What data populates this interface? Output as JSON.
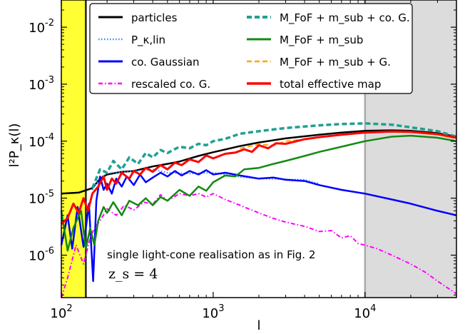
{
  "chart_data": {
    "type": "line",
    "xlabel": "l",
    "ylabel": "l²P_κ(l)",
    "xscale": "log",
    "yscale": "log",
    "xlim": [
      100,
      40000
    ],
    "ylim": [
      1.8e-07,
      0.03
    ],
    "xticks": [
      {
        "value": 100,
        "mant": "10",
        "exp": "2"
      },
      {
        "value": 1000,
        "mant": "10",
        "exp": "3"
      },
      {
        "value": 10000,
        "mant": "10",
        "exp": "4"
      }
    ],
    "yticks": [
      {
        "value": 1e-06,
        "mant": "10",
        "exp": "-6"
      },
      {
        "value": 1e-05,
        "mant": "10",
        "exp": "-5"
      },
      {
        "value": 0.0001,
        "mant": "10",
        "exp": "-4"
      },
      {
        "value": 0.001,
        "mant": "10",
        "exp": "-3"
      },
      {
        "value": 0.01,
        "mant": "10",
        "exp": "-2"
      }
    ],
    "shaded_regions": [
      {
        "x": [
          100,
          145
        ],
        "color": "#ffff33"
      },
      {
        "x": [
          10000,
          40000
        ],
        "color": "#dcdcdc"
      }
    ],
    "legend_position": "top",
    "annotation": {
      "line1": "single light-cone realisation as in Fig. 2",
      "line2": "z_s = 4"
    },
    "series": [
      {
        "name": "particles",
        "color": "#000000",
        "dash": "solid",
        "width": 2.5,
        "points": [
          [
            100,
            1.2e-05
          ],
          [
            130,
            1.25e-05
          ],
          [
            160,
            1.5e-05
          ],
          [
            180,
            2.2e-05
          ],
          [
            200,
            2.6e-05
          ],
          [
            250,
            2.9e-05
          ],
          [
            300,
            3e-05
          ],
          [
            400,
            3.6e-05
          ],
          [
            500,
            4e-05
          ],
          [
            600,
            4.4e-05
          ],
          [
            800,
            5.5e-05
          ],
          [
            1000,
            6.4e-05
          ],
          [
            1500,
            8.2e-05
          ],
          [
            2000,
            9.5e-05
          ],
          [
            3000,
            0.000112
          ],
          [
            5000,
            0.00013
          ],
          [
            7000,
            0.000142
          ],
          [
            10000,
            0.000152
          ],
          [
            15000,
            0.000155
          ],
          [
            20000,
            0.000152
          ],
          [
            30000,
            0.000138
          ],
          [
            40000,
            0.00012
          ]
        ]
      },
      {
        "name": "P_κ,lin",
        "color": "#3388ff",
        "dash": "dotted",
        "width": 2,
        "points": [
          [
            160,
            1.4e-05
          ],
          [
            180,
            2.3e-05
          ],
          [
            200,
            2.7e-05
          ],
          [
            250,
            2.9e-05
          ],
          [
            300,
            3e-05
          ],
          [
            400,
            3.2e-05
          ],
          [
            500,
            2.8e-05
          ],
          [
            700,
            2.7e-05
          ],
          [
            1000,
            2.8e-05
          ],
          [
            1500,
            2.35e-05
          ],
          [
            2000,
            2.2e-05
          ],
          [
            3000,
            2.15e-05
          ],
          [
            4000,
            2.1e-05
          ],
          [
            5000,
            1.8e-05
          ]
        ]
      },
      {
        "name": "co. Gaussian",
        "color": "#0000ff",
        "dash": "solid",
        "width": 2.5,
        "points": [
          [
            100,
            1.5e-06
          ],
          [
            110,
            5e-06
          ],
          [
            118,
            1.3e-06
          ],
          [
            128,
            7e-06
          ],
          [
            140,
            1.4e-06
          ],
          [
            152,
            8e-06
          ],
          [
            162,
            3.5e-07
          ],
          [
            170,
            9e-06
          ],
          [
            180,
            2.4e-05
          ],
          [
            190,
            1.4e-05
          ],
          [
            200,
            1.8e-05
          ],
          [
            215,
            1.2e-05
          ],
          [
            230,
            2.2e-05
          ],
          [
            250,
            1.6e-05
          ],
          [
            270,
            2.4e-05
          ],
          [
            300,
            1.7e-05
          ],
          [
            330,
            2.6e-05
          ],
          [
            360,
            1.9e-05
          ],
          [
            400,
            2.3e-05
          ],
          [
            450,
            2.8e-05
          ],
          [
            500,
            2.4e-05
          ],
          [
            560,
            3e-05
          ],
          [
            620,
            2.5e-05
          ],
          [
            700,
            3e-05
          ],
          [
            800,
            2.6e-05
          ],
          [
            900,
            3.1e-05
          ],
          [
            1000,
            2.6e-05
          ],
          [
            1200,
            2.8e-05
          ],
          [
            1500,
            2.5e-05
          ],
          [
            2000,
            2.2e-05
          ],
          [
            2500,
            2.3e-05
          ],
          [
            3000,
            2.1e-05
          ],
          [
            4000,
            2e-05
          ],
          [
            5000,
            1.7e-05
          ],
          [
            7000,
            1.4e-05
          ],
          [
            10000,
            1.2e-05
          ],
          [
            15000,
            9.5e-06
          ],
          [
            20000,
            8e-06
          ],
          [
            30000,
            6e-06
          ],
          [
            40000,
            5e-06
          ]
        ]
      },
      {
        "name": "rescaled co. G.",
        "color": "#ff00ff",
        "dash": "dashdot",
        "width": 2,
        "points": [
          [
            100,
            1.8e-07
          ],
          [
            110,
            4e-07
          ],
          [
            125,
            1.5e-06
          ],
          [
            140,
            7e-07
          ],
          [
            155,
            2e-06
          ],
          [
            165,
            3e-06
          ],
          [
            180,
            4e-06
          ],
          [
            200,
            6.5e-06
          ],
          [
            230,
            5e-06
          ],
          [
            260,
            7.5e-06
          ],
          [
            300,
            6.2e-06
          ],
          [
            350,
            8.5e-06
          ],
          [
            400,
            7.8e-06
          ],
          [
            450,
            1.15e-05
          ],
          [
            500,
            9e-06
          ],
          [
            600,
            1.2e-05
          ],
          [
            700,
            1.1e-05
          ],
          [
            800,
            1.2e-05
          ],
          [
            900,
            1.05e-05
          ],
          [
            1000,
            1.2e-05
          ],
          [
            1200,
            9.5e-06
          ],
          [
            1500,
            7.5e-06
          ],
          [
            2000,
            5.5e-06
          ],
          [
            2500,
            4.4e-06
          ],
          [
            3000,
            3.8e-06
          ],
          [
            4000,
            3.2e-06
          ],
          [
            5000,
            2.6e-06
          ],
          [
            6000,
            2.7e-06
          ],
          [
            7000,
            2e-06
          ],
          [
            8000,
            2.2e-06
          ],
          [
            9000,
            1.6e-06
          ],
          [
            10000,
            1.5e-06
          ],
          [
            12000,
            1.3e-06
          ],
          [
            15000,
            1e-06
          ],
          [
            20000,
            7e-07
          ],
          [
            25000,
            5e-07
          ],
          [
            30000,
            3.5e-07
          ],
          [
            40000,
            2.1e-07
          ]
        ]
      },
      {
        "name": "M_FoF + m_sub + co. G.",
        "color": "#20a090",
        "dash": "dashed",
        "width": 3.5,
        "points": [
          [
            160,
            1.5e-05
          ],
          [
            180,
            3.2e-05
          ],
          [
            200,
            2.8e-05
          ],
          [
            220,
            4.5e-05
          ],
          [
            250,
            3.2e-05
          ],
          [
            280,
            5.2e-05
          ],
          [
            320,
            4e-05
          ],
          [
            360,
            6.2e-05
          ],
          [
            400,
            5.2e-05
          ],
          [
            450,
            7e-05
          ],
          [
            500,
            6.2e-05
          ],
          [
            600,
            8e-05
          ],
          [
            700,
            7.5e-05
          ],
          [
            800,
            9e-05
          ],
          [
            900,
            8.5e-05
          ],
          [
            1000,
            0.0001
          ],
          [
            1200,
            0.00011
          ],
          [
            1500,
            0.000135
          ],
          [
            2000,
            0.00015
          ],
          [
            3000,
            0.00017
          ],
          [
            5000,
            0.00019
          ],
          [
            7000,
            0.0002
          ],
          [
            10000,
            0.000205
          ],
          [
            15000,
            0.000195
          ],
          [
            20000,
            0.000175
          ],
          [
            30000,
            0.00015
          ],
          [
            40000,
            0.00012
          ]
        ]
      },
      {
        "name": "M_FoF + m_sub",
        "color": "#138a13",
        "dash": "solid",
        "width": 2.5,
        "points": [
          [
            100,
            6e-06
          ],
          [
            110,
            1.2e-06
          ],
          [
            120,
            3e-06
          ],
          [
            135,
            6e-06
          ],
          [
            145,
            1.3e-06
          ],
          [
            155,
            3e-06
          ],
          [
            165,
            1.5e-06
          ],
          [
            175,
            4e-06
          ],
          [
            190,
            7e-06
          ],
          [
            200,
            5.5e-06
          ],
          [
            220,
            8.5e-06
          ],
          [
            250,
            5e-06
          ],
          [
            280,
            9e-06
          ],
          [
            320,
            7.5e-06
          ],
          [
            360,
            1e-05
          ],
          [
            400,
            7.5e-06
          ],
          [
            450,
            1.05e-05
          ],
          [
            500,
            9e-06
          ],
          [
            600,
            1.4e-05
          ],
          [
            700,
            1.1e-05
          ],
          [
            800,
            1.6e-05
          ],
          [
            900,
            1.35e-05
          ],
          [
            1000,
            1.9e-05
          ],
          [
            1200,
            2.5e-05
          ],
          [
            1400,
            2.4e-05
          ],
          [
            1600,
            3.2e-05
          ],
          [
            2000,
            3.4e-05
          ],
          [
            2500,
            4e-05
          ],
          [
            3000,
            4.5e-05
          ],
          [
            4000,
            5.5e-05
          ],
          [
            5000,
            6.5e-05
          ],
          [
            7000,
            8e-05
          ],
          [
            10000,
            0.0001
          ],
          [
            15000,
            0.00012
          ],
          [
            20000,
            0.000125
          ],
          [
            30000,
            0.000115
          ],
          [
            40000,
            0.0001
          ]
        ]
      },
      {
        "name": "M_FoF + m_sub + G.",
        "color": "#ffa500",
        "dash": "dashed",
        "width": 2,
        "points": [
          [
            1500,
            7.5e-05
          ],
          [
            2000,
            8.8e-05
          ],
          [
            2500,
            8.4e-05
          ],
          [
            3000,
            0.0001
          ],
          [
            4000,
            0.000108
          ],
          [
            5000,
            0.000118
          ],
          [
            7000,
            0.00013
          ],
          [
            10000,
            0.000142
          ],
          [
            15000,
            0.000145
          ],
          [
            20000,
            0.000143
          ],
          [
            30000,
            0.00013
          ],
          [
            40000,
            0.000112
          ]
        ]
      },
      {
        "name": "total effective map",
        "color": "#ff0000",
        "dash": "solid",
        "width": 3,
        "points": [
          [
            100,
            3.5e-06
          ],
          [
            110,
            4.5e-06
          ],
          [
            120,
            8e-06
          ],
          [
            130,
            5.5e-06
          ],
          [
            140,
            1e-05
          ],
          [
            150,
            6e-06
          ],
          [
            160,
            1.2e-05
          ],
          [
            175,
            1.6e-05
          ],
          [
            190,
            2.4e-05
          ],
          [
            200,
            1.4e-05
          ],
          [
            215,
            2.2e-05
          ],
          [
            230,
            1.8e-05
          ],
          [
            250,
            2.8e-05
          ],
          [
            280,
            2.2e-05
          ],
          [
            300,
            3e-05
          ],
          [
            330,
            2.6e-05
          ],
          [
            360,
            3.4e-05
          ],
          [
            400,
            2.9e-05
          ],
          [
            450,
            3.8e-05
          ],
          [
            500,
            3.2e-05
          ],
          [
            560,
            4.2e-05
          ],
          [
            620,
            3.8e-05
          ],
          [
            700,
            4.8e-05
          ],
          [
            800,
            4.3e-05
          ],
          [
            900,
            5.6e-05
          ],
          [
            1000,
            5e-05
          ],
          [
            1200,
            6e-05
          ],
          [
            1400,
            6.3e-05
          ],
          [
            1600,
            7.2e-05
          ],
          [
            1800,
            6.5e-05
          ],
          [
            2000,
            8.5e-05
          ],
          [
            2300,
            7.5e-05
          ],
          [
            2600,
            9.2e-05
          ],
          [
            3000,
            9e-05
          ],
          [
            4000,
            0.000108
          ],
          [
            5000,
            0.000118
          ],
          [
            7000,
            0.00013
          ],
          [
            10000,
            0.000142
          ],
          [
            15000,
            0.000148
          ],
          [
            20000,
            0.000146
          ],
          [
            30000,
            0.000133
          ],
          [
            40000,
            0.000115
          ]
        ]
      }
    ]
  }
}
